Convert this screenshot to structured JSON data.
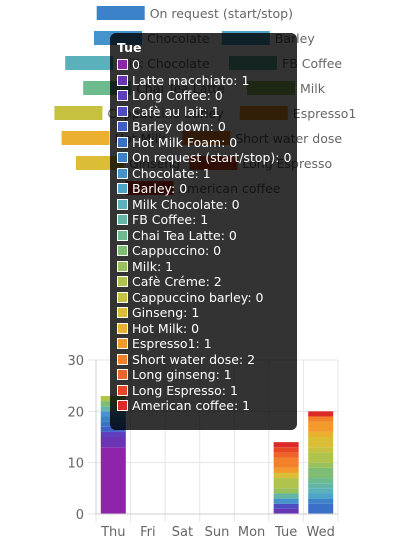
{
  "chart_data": {
    "type": "bar",
    "stacked": true,
    "categories": [
      "Thu",
      "Fri",
      "Sat",
      "Sun",
      "Mon",
      "Tue",
      "Wed"
    ],
    "ylim": [
      0,
      30
    ],
    "yticks": [
      0,
      10,
      20,
      30
    ],
    "grid": true,
    "legend_position": "top",
    "series": [
      {
        "name": "0",
        "color": "#8e24aa",
        "values": [
          13,
          0,
          0,
          0,
          0,
          0,
          0
        ]
      },
      {
        "name": "Latte macchiato",
        "color": "#6a35b5",
        "values": [
          2,
          0,
          0,
          0,
          0,
          1,
          0
        ]
      },
      {
        "name": "Long Coffee",
        "color": "#5e3ebc",
        "values": [
          1,
          0,
          0,
          0,
          0,
          0,
          0
        ]
      },
      {
        "name": "Cafè au lait",
        "color": "#4e4cc2",
        "values": [
          0,
          0,
          0,
          0,
          0,
          1,
          0
        ]
      },
      {
        "name": "Barley down",
        "color": "#3f5ec6",
        "values": [
          1,
          0,
          0,
          0,
          0,
          0,
          0
        ]
      },
      {
        "name": "Hot Milk Foam",
        "color": "#3a70c8",
        "values": [
          1,
          0,
          0,
          0,
          0,
          0,
          2
        ]
      },
      {
        "name": "On request (start/stop)",
        "color": "#3b82c9",
        "values": [
          1,
          0,
          0,
          0,
          0,
          0,
          1
        ]
      },
      {
        "name": "Chocolate",
        "color": "#4493cd",
        "values": [
          1,
          0,
          0,
          0,
          0,
          1,
          0
        ]
      },
      {
        "name": "Barley",
        "color": "#4ea3c8",
        "values": [
          0,
          0,
          0,
          0,
          0,
          0,
          1
        ]
      },
      {
        "name": "Milk Chocolate",
        "color": "#5ab1bc",
        "values": [
          0,
          0,
          0,
          0,
          0,
          0,
          1
        ]
      },
      {
        "name": "FB Coffee",
        "color": "#63b6a5",
        "values": [
          1,
          0,
          0,
          0,
          0,
          1,
          1
        ]
      },
      {
        "name": "Chai Tea Latte",
        "color": "#6dba8c",
        "values": [
          0,
          0,
          0,
          0,
          0,
          0,
          1
        ]
      },
      {
        "name": "Cappuccino",
        "color": "#80bd74",
        "values": [
          1,
          0,
          0,
          0,
          0,
          0,
          2
        ]
      },
      {
        "name": "Milk",
        "color": "#98c15e",
        "values": [
          0,
          0,
          0,
          0,
          0,
          1,
          1
        ]
      },
      {
        "name": "Cafè Créme",
        "color": "#b0c34d",
        "values": [
          1,
          0,
          0,
          0,
          0,
          2,
          2
        ]
      },
      {
        "name": "Cappuccino barley",
        "color": "#c6c23f",
        "values": [
          0,
          0,
          0,
          0,
          0,
          0,
          1
        ]
      },
      {
        "name": "Ginseng",
        "color": "#dbbd36",
        "values": [
          0,
          0,
          0,
          0,
          0,
          1,
          2
        ]
      },
      {
        "name": "Hot Milk",
        "color": "#ebb030",
        "values": [
          0,
          0,
          0,
          0,
          0,
          0,
          1
        ]
      },
      {
        "name": "Espresso1",
        "color": "#f29a2c",
        "values": [
          0,
          0,
          0,
          0,
          0,
          1,
          2
        ]
      },
      {
        "name": "Short water dose",
        "color": "#f3812a",
        "values": [
          0,
          0,
          0,
          0,
          0,
          2,
          1
        ]
      },
      {
        "name": "Long ginseng",
        "color": "#ef6428",
        "values": [
          0,
          0,
          0,
          0,
          0,
          1,
          0
        ]
      },
      {
        "name": "Long Espresso",
        "color": "#e84726",
        "values": [
          0,
          0,
          0,
          0,
          0,
          1,
          0
        ]
      },
      {
        "name": "American coffee",
        "color": "#dc2b26",
        "values": [
          0,
          0,
          0,
          0,
          0,
          1,
          1
        ]
      }
    ],
    "legend_visible": [
      {
        "name": "On request (start/stop)",
        "color": "#3b82c9"
      },
      {
        "name": "Chocolate",
        "color": "#4493cd"
      },
      {
        "name": "Barley",
        "color": "#4ea3c8"
      },
      {
        "name": "Milk Chocolate",
        "color": "#5ab1bc"
      },
      {
        "name": "FB Coffee",
        "color": "#63b6a5"
      },
      {
        "name": "Chai Tea Latte",
        "color": "#6dba8c"
      },
      {
        "name": "Milk",
        "color": "#98c15e"
      },
      {
        "name": "Cappuccino barley",
        "color": "#c6c23f"
      },
      {
        "name": "Espresso1",
        "color": "#f29a2c"
      },
      {
        "name": "Hot Milk",
        "color": "#ebb030"
      },
      {
        "name": "Short water dose",
        "color": "#f3812a"
      },
      {
        "name": "Ginseng",
        "color": "#dbbd36"
      },
      {
        "name": "Long Espresso",
        "color": "#e84726"
      },
      {
        "name": "American coffee",
        "color": "#dc2b26"
      }
    ]
  },
  "tooltip": {
    "title": "Tue",
    "items": [
      {
        "text": "0",
        "color": "#8e24aa"
      },
      {
        "text": "Latte macchiato: 1",
        "color": "#6a35b5"
      },
      {
        "text": "Long Coffee: 0",
        "color": "#5e3ebc"
      },
      {
        "text": "Cafè au lait: 1",
        "color": "#4e4cc2"
      },
      {
        "text": "Barley down: 0",
        "color": "#3f5ec6"
      },
      {
        "text": "Hot Milk Foam: 0",
        "color": "#3a70c8"
      },
      {
        "text": "On request (start/stop): 0",
        "color": "#3b82c9"
      },
      {
        "text": "Chocolate: 1",
        "color": "#4493cd"
      },
      {
        "text": "Barley: 0",
        "color": "#4ea3c8"
      },
      {
        "text": "Milk Chocolate: 0",
        "color": "#5ab1bc"
      },
      {
        "text": "FB Coffee: 1",
        "color": "#63b6a5"
      },
      {
        "text": "Chai Tea Latte: 0",
        "color": "#6dba8c"
      },
      {
        "text": "Cappuccino: 0",
        "color": "#80bd74"
      },
      {
        "text": "Milk: 1",
        "color": "#98c15e"
      },
      {
        "text": "Cafè Créme: 2",
        "color": "#b0c34d"
      },
      {
        "text": "Cappuccino barley: 0",
        "color": "#c6c23f"
      },
      {
        "text": "Ginseng: 1",
        "color": "#dbbd36"
      },
      {
        "text": "Hot Milk: 0",
        "color": "#ebb030"
      },
      {
        "text": "Espresso1: 1",
        "color": "#f29a2c"
      },
      {
        "text": "Short water dose: 2",
        "color": "#f3812a"
      },
      {
        "text": "Long ginseng: 1",
        "color": "#ef6428"
      },
      {
        "text": "Long Espresso: 1",
        "color": "#e84726"
      },
      {
        "text": "American coffee: 1",
        "color": "#dc2b26"
      }
    ]
  }
}
